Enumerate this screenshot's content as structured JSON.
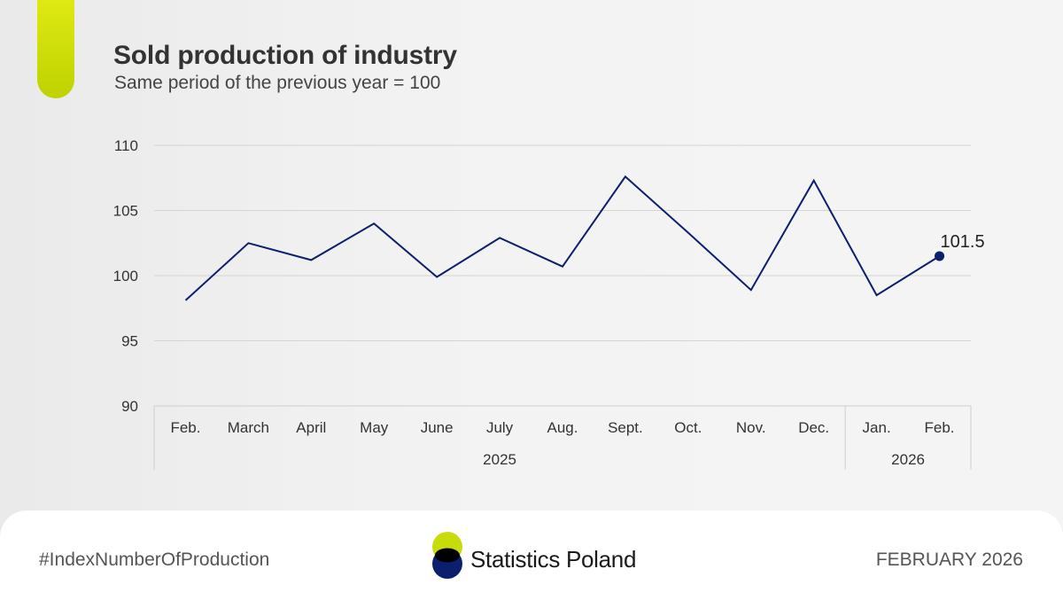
{
  "header": {
    "title": "Sold production of industry",
    "subtitle": "Same period of the previous year = 100"
  },
  "chart_data": {
    "type": "line",
    "title": "Sold production of industry",
    "subtitle": "Same period of the previous year = 100",
    "categories": [
      "Feb.",
      "March",
      "April",
      "May",
      "June",
      "July",
      "Aug.",
      "Sept.",
      "Oct.",
      "Nov.",
      "Dec.",
      "Jan.",
      "Feb."
    ],
    "category_groups": [
      {
        "label": "2025",
        "start": 0,
        "end": 10
      },
      {
        "label": "2026",
        "start": 11,
        "end": 12
      }
    ],
    "series": [
      {
        "values": [
          98.1,
          102.5,
          101.2,
          104.0,
          99.9,
          102.9,
          100.7,
          107.6,
          103.3,
          98.9,
          107.3,
          98.5,
          101.5
        ]
      }
    ],
    "yticks": [
      90,
      95,
      100,
      105,
      110
    ],
    "ylim": [
      90,
      110
    ],
    "grid": true,
    "line_color": "#0c1f6f",
    "highlight": {
      "index": 12,
      "label": "101.5"
    }
  },
  "footer": {
    "hashtag": "#IndexNumberOfProduction",
    "brand": "Statistics Poland",
    "date": "FEBRUARY 2026",
    "brand_colors": {
      "green": "#c8dc0c",
      "navy": "#0c1f6f"
    }
  }
}
